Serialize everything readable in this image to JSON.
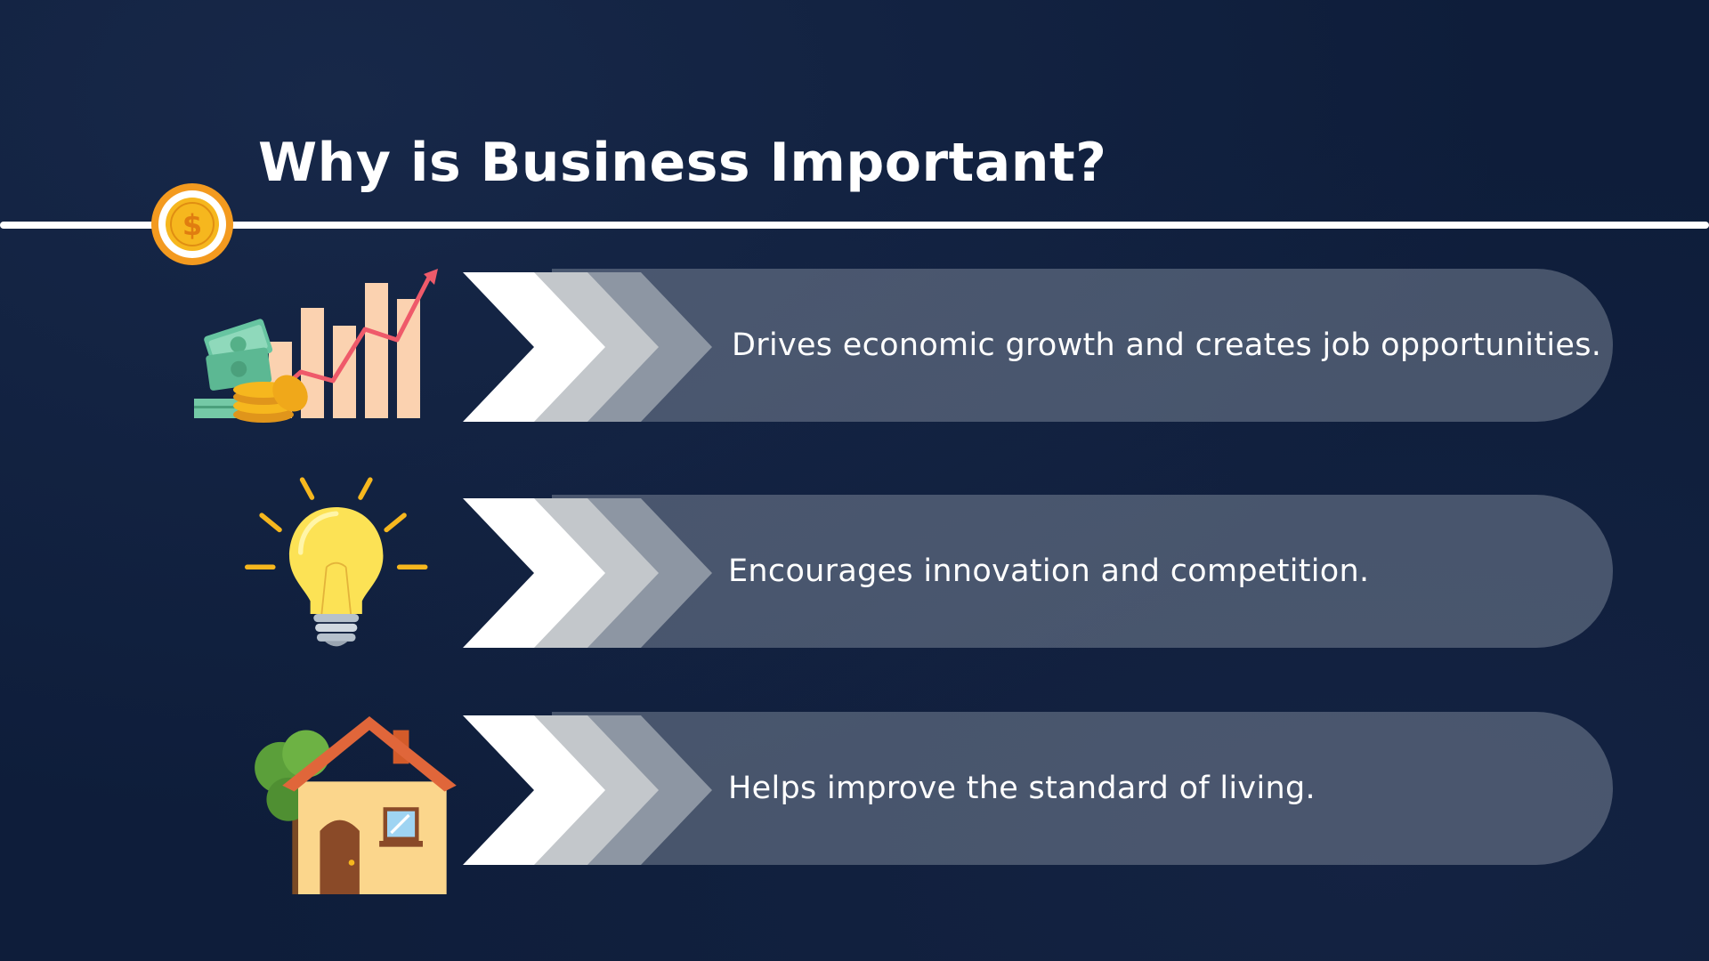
{
  "title": "Why is Business Important?",
  "badge": {
    "icon": "dollar-coin-icon",
    "symbol": "$",
    "ring_color": "#f39a1f",
    "coin_color": "#f6b71e"
  },
  "items": [
    {
      "text": "Drives economic growth and creates job opportunities.",
      "icon": "growth-chart-icon"
    },
    {
      "text": "Encourages innovation and competition.",
      "icon": "light-bulb-icon"
    },
    {
      "text": "Helps improve the standard of living.",
      "icon": "house-icon"
    }
  ],
  "colors": {
    "background": "#0e1d3a",
    "pill": "#7d8796",
    "text": "#ffffff"
  }
}
